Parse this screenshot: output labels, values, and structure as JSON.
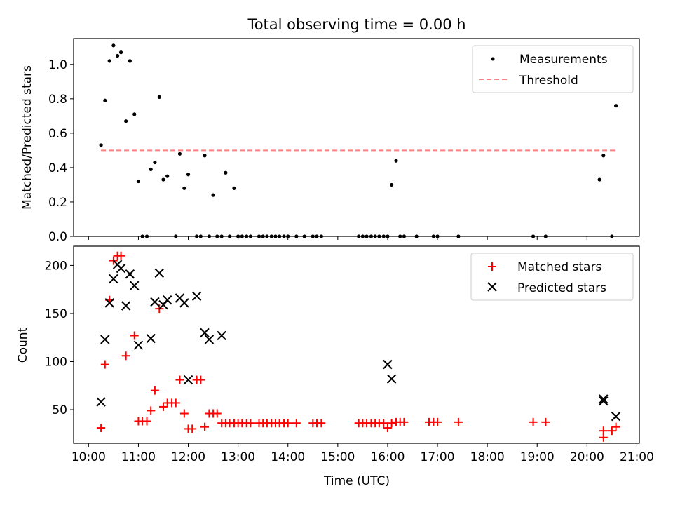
{
  "chart_data": {
    "type": "scatter",
    "title": "Total observing time = 0.00 h",
    "xlabel": "Time (UTC)",
    "x_tick_labels": [
      "10:00",
      "11:00",
      "12:00",
      "13:00",
      "14:00",
      "15:00",
      "16:00",
      "17:00",
      "18:00",
      "19:00",
      "20:00",
      "21:00"
    ],
    "x_ticks_hours": [
      10,
      11,
      12,
      13,
      14,
      15,
      16,
      17,
      18,
      19,
      20,
      21
    ],
    "xlim_hours": [
      9.7,
      21.05
    ],
    "colors": {
      "measurements": "#000000",
      "threshold": "#ff7f7f",
      "matched": "#ff0000",
      "predicted": "#000000"
    },
    "top_panel": {
      "ylabel": "Matched/Predicted stars",
      "ylim": [
        0,
        1.15
      ],
      "y_ticks": [
        0.0,
        0.2,
        0.4,
        0.6,
        0.8,
        1.0
      ],
      "y_tick_labels": [
        "0.0",
        "0.2",
        "0.4",
        "0.6",
        "0.8",
        "1.0"
      ],
      "legend": {
        "position": "upper right",
        "measurements_label": "Measurements",
        "threshold_label": "Threshold"
      },
      "threshold": {
        "value": 0.5,
        "x_range": [
          10.25,
          20.57
        ]
      },
      "measurements": {
        "x": [
          10.25,
          10.33,
          10.42,
          10.5,
          10.58,
          10.65,
          10.75,
          10.83,
          10.92,
          11.0,
          11.08,
          11.17,
          11.25,
          11.33,
          11.42,
          11.5,
          11.58,
          11.75,
          11.83,
          11.92,
          12.0,
          12.17,
          12.25,
          12.33,
          12.42,
          12.5,
          12.58,
          12.67,
          12.75,
          12.83,
          12.92,
          13.0,
          13.08,
          13.17,
          13.25,
          13.42,
          13.5,
          13.58,
          13.67,
          13.75,
          13.83,
          13.92,
          14.0,
          14.17,
          14.33,
          14.5,
          14.58,
          14.67,
          15.42,
          15.5,
          15.58,
          15.67,
          15.75,
          15.83,
          15.92,
          16.0,
          16.08,
          16.17,
          16.25,
          16.33,
          16.58,
          16.92,
          17.0,
          17.42,
          18.92,
          19.17,
          20.25,
          20.33,
          20.5,
          20.58
        ],
        "y": [
          0.53,
          0.79,
          1.02,
          1.11,
          1.05,
          1.07,
          0.67,
          1.02,
          0.71,
          0.32,
          0.0,
          0.0,
          0.39,
          0.43,
          0.81,
          0.33,
          0.35,
          0.0,
          0.48,
          0.28,
          0.36,
          0.0,
          0.0,
          0.47,
          0.0,
          0.24,
          0.0,
          0.0,
          0.37,
          0.0,
          0.28,
          0.0,
          0.0,
          0.0,
          0.0,
          0.0,
          0.0,
          0.0,
          0.0,
          0.0,
          0.0,
          0.0,
          0.0,
          0.0,
          0.0,
          0.0,
          0.0,
          0.0,
          0.0,
          0.0,
          0.0,
          0.0,
          0.0,
          0.0,
          0.0,
          0.0,
          0.3,
          0.44,
          0.0,
          0.0,
          0.0,
          0.0,
          0.0,
          0.0,
          0.0,
          0.0,
          0.33,
          0.47,
          0.0,
          0.76
        ]
      }
    },
    "bottom_panel": {
      "ylabel": "Count",
      "ylim": [
        15,
        220
      ],
      "y_ticks": [
        50,
        100,
        150,
        200
      ],
      "y_tick_labels": [
        "50",
        "100",
        "150",
        "200"
      ],
      "legend": {
        "position": "upper right",
        "matched_label": "Matched stars",
        "predicted_label": "Predicted stars"
      },
      "matched": {
        "x": [
          10.25,
          10.33,
          10.42,
          10.5,
          10.58,
          10.65,
          10.75,
          10.92,
          11.0,
          11.08,
          11.17,
          11.25,
          11.33,
          11.42,
          11.5,
          11.58,
          11.67,
          11.75,
          11.83,
          11.92,
          12.0,
          12.08,
          12.17,
          12.25,
          12.33,
          12.42,
          12.5,
          12.58,
          12.67,
          12.75,
          12.83,
          12.92,
          13.0,
          13.08,
          13.17,
          13.25,
          13.42,
          13.5,
          13.58,
          13.67,
          13.75,
          13.83,
          13.92,
          14.0,
          14.17,
          14.5,
          14.58,
          14.67,
          15.42,
          15.5,
          15.58,
          15.67,
          15.75,
          15.83,
          15.92,
          16.0,
          16.08,
          16.17,
          16.25,
          16.33,
          16.83,
          16.92,
          17.0,
          17.42,
          18.92,
          19.17,
          20.33,
          20.33,
          20.5,
          20.58
        ],
        "y": [
          31,
          97,
          164,
          205,
          210,
          210,
          106,
          127,
          38,
          38,
          38,
          49,
          70,
          155,
          53,
          57,
          57,
          57,
          81,
          46,
          30,
          30,
          81,
          81,
          32,
          46,
          46,
          46,
          36,
          36,
          36,
          36,
          36,
          36,
          36,
          36,
          36,
          36,
          36,
          36,
          36,
          36,
          36,
          36,
          36,
          36,
          36,
          36,
          36,
          36,
          36,
          36,
          36,
          36,
          36,
          31,
          36,
          37,
          37,
          37,
          37,
          37,
          37,
          37,
          37,
          37,
          21,
          28,
          28,
          32
        ]
      },
      "predicted": {
        "x": [
          10.25,
          10.33,
          10.42,
          10.5,
          10.58,
          10.65,
          10.75,
          10.83,
          10.92,
          11.0,
          11.25,
          11.33,
          11.42,
          11.5,
          11.58,
          11.83,
          11.92,
          12.0,
          12.17,
          12.33,
          12.42,
          12.67,
          16.0,
          16.08,
          20.33,
          20.33,
          20.58
        ],
        "y": [
          58,
          123,
          161,
          186,
          201,
          197,
          158,
          191,
          179,
          117,
          124,
          162,
          192,
          159,
          164,
          166,
          161,
          81,
          168,
          130,
          123,
          127,
          97,
          82,
          61,
          59,
          43
        ]
      }
    }
  }
}
